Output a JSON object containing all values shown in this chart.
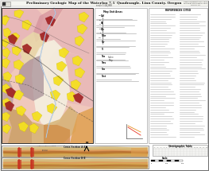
{
  "title": "Preliminary Geologic Map of the Waterloo 7.5′ Quadrangle, Linn County, Oregon",
  "bg_color": "#f0efec",
  "map_colors": {
    "pink_light": "#e8b8b8",
    "pink_rose": "#d4909a",
    "pink_pale": "#f0c8bc",
    "tan_cream": "#e8d8a8",
    "tan": "#d4b070",
    "orange_tan": "#e0a050",
    "orange": "#d08840",
    "yellow": "#f5e020",
    "red_dark": "#a02020",
    "red": "#c83020",
    "brown": "#a06838",
    "brown_light": "#c49858",
    "gray_purple": "#a89098",
    "gray": "#b8a8a0",
    "white_valley": "#f5f0e0",
    "lavender": "#b898c0",
    "green_gray": "#a8b090"
  },
  "cs_layer_colors": [
    "#c8a060",
    "#d4a850",
    "#c08030",
    "#b87030",
    "#e09858",
    "#d4b878"
  ],
  "cs_layer_colors2": [
    "#c8a060",
    "#c09040",
    "#b87030",
    "#d4a850",
    "#e09858",
    "#d4b878"
  ],
  "fault_red": "#c83020",
  "river_blue": "#6090c0",
  "text_dark": "#222222",
  "text_gray": "#666666",
  "panel_bg": "#ffffff",
  "table_line": "#bbbbbb"
}
